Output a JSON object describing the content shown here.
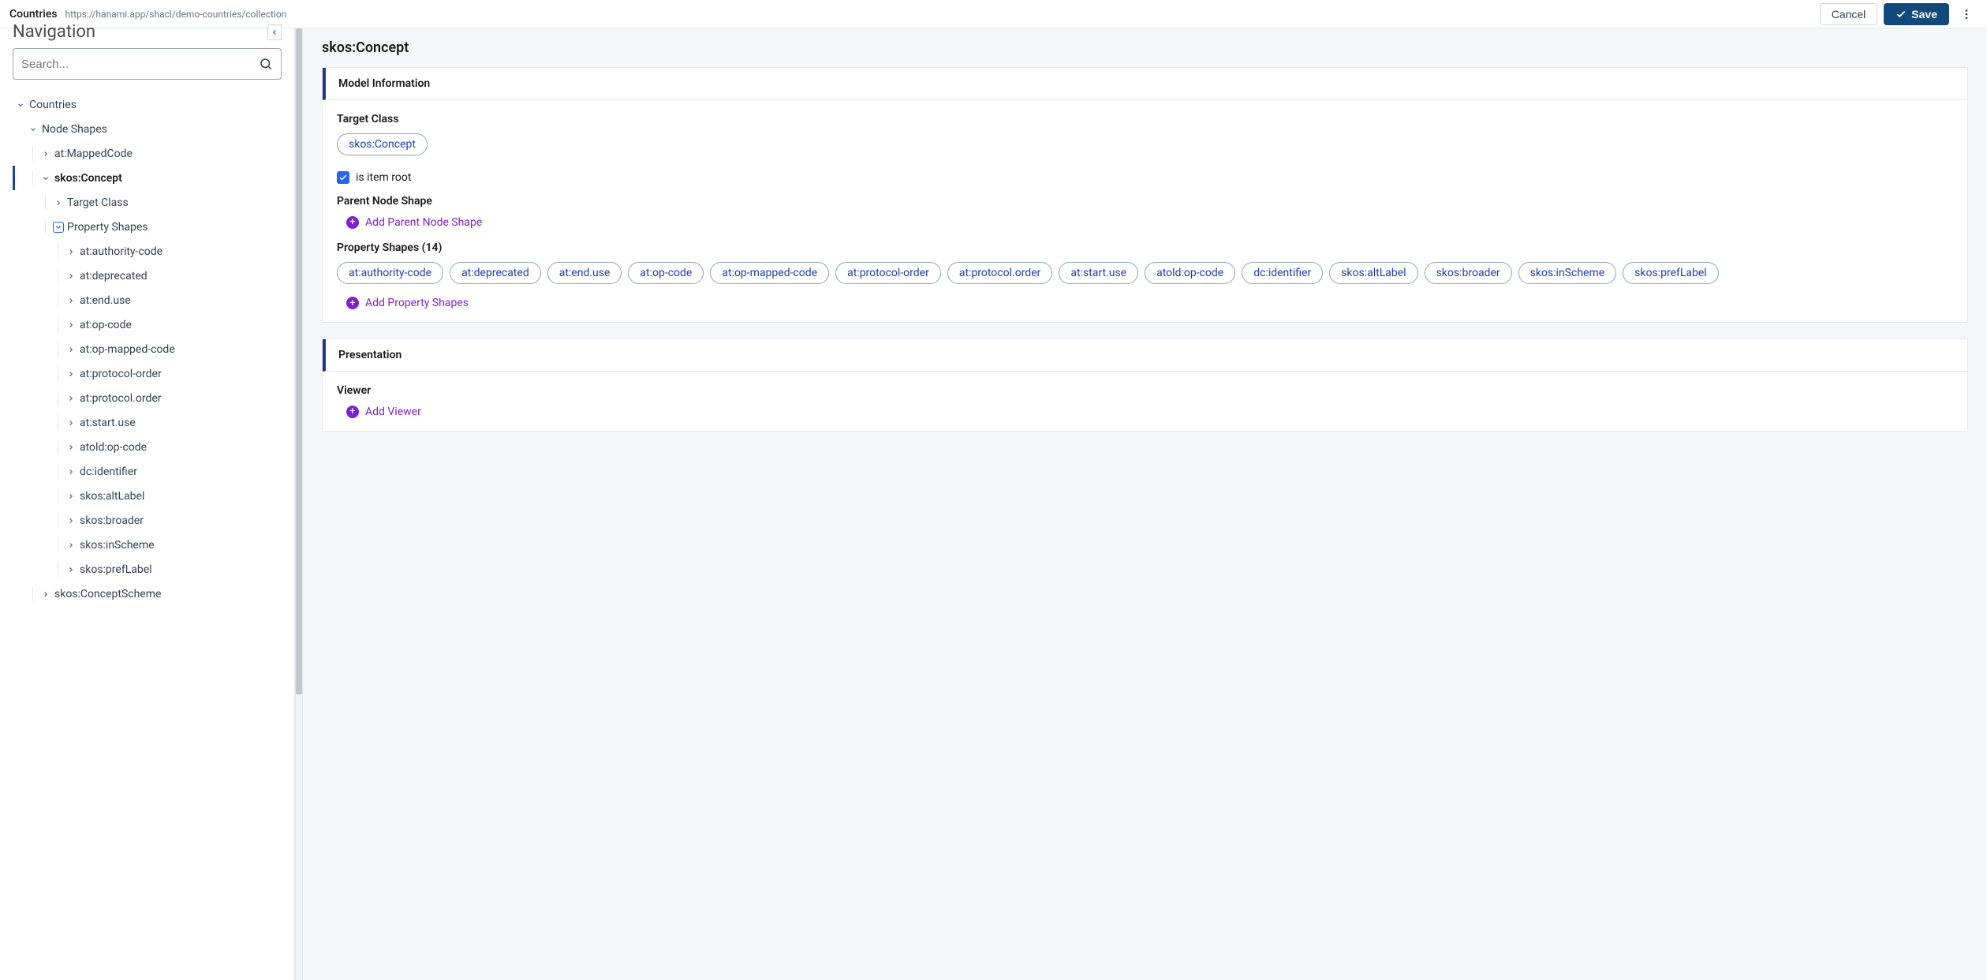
{
  "topbar": {
    "title": "Countries",
    "url": "https://hanami.app/shacl/demo-countries/collection",
    "cancel_label": "Cancel",
    "save_label": "Save"
  },
  "sidebar": {
    "nav_title": "Navigation",
    "search_placeholder": "Search...",
    "tree": [
      {
        "label": "Countries",
        "depth": 0,
        "expanded": true,
        "hasChildren": true
      },
      {
        "label": "Node Shapes",
        "depth": 1,
        "expanded": true,
        "hasChildren": true
      },
      {
        "label": "at:MappedCode",
        "depth": 2,
        "expanded": false,
        "hasChildren": true,
        "guide": true
      },
      {
        "label": "skos:Concept",
        "depth": 2,
        "expanded": true,
        "hasChildren": true,
        "selected": true,
        "guide": true
      },
      {
        "label": "Target Class",
        "depth": 3,
        "expanded": false,
        "hasChildren": true,
        "guide": true
      },
      {
        "label": "Property Shapes",
        "depth": 3,
        "expanded": true,
        "hasChildren": true,
        "selectedBox": true,
        "guide": true
      },
      {
        "label": "at:authority-code",
        "depth": 4,
        "expanded": false,
        "hasChildren": true,
        "guide": true
      },
      {
        "label": "at:deprecated",
        "depth": 4,
        "expanded": false,
        "hasChildren": true,
        "guide": true
      },
      {
        "label": "at:end.use",
        "depth": 4,
        "expanded": false,
        "hasChildren": true,
        "guide": true
      },
      {
        "label": "at:op-code",
        "depth": 4,
        "expanded": false,
        "hasChildren": true,
        "guide": true
      },
      {
        "label": "at:op-mapped-code",
        "depth": 4,
        "expanded": false,
        "hasChildren": true,
        "guide": true
      },
      {
        "label": "at:protocol-order",
        "depth": 4,
        "expanded": false,
        "hasChildren": true,
        "guide": true
      },
      {
        "label": "at:protocol.order",
        "depth": 4,
        "expanded": false,
        "hasChildren": true,
        "guide": true
      },
      {
        "label": "at:start.use",
        "depth": 4,
        "expanded": false,
        "hasChildren": true,
        "guide": true
      },
      {
        "label": "atold:op-code",
        "depth": 4,
        "expanded": false,
        "hasChildren": true,
        "guide": true
      },
      {
        "label": "dc:identifier",
        "depth": 4,
        "expanded": false,
        "hasChildren": true,
        "guide": true
      },
      {
        "label": "skos:altLabel",
        "depth": 4,
        "expanded": false,
        "hasChildren": true,
        "guide": true
      },
      {
        "label": "skos:broader",
        "depth": 4,
        "expanded": false,
        "hasChildren": true,
        "guide": true
      },
      {
        "label": "skos:inScheme",
        "depth": 4,
        "expanded": false,
        "hasChildren": true,
        "guide": true
      },
      {
        "label": "skos:prefLabel",
        "depth": 4,
        "expanded": false,
        "hasChildren": true,
        "guide": true
      },
      {
        "label": "skos:ConceptScheme",
        "depth": 2,
        "expanded": false,
        "hasChildren": true,
        "guide": true
      }
    ]
  },
  "content": {
    "heading": "skos:Concept",
    "model_info": {
      "header": "Model Information",
      "target_class_label": "Target Class",
      "target_class_value": "skos:Concept",
      "is_item_root_label": "is item root",
      "is_item_root_checked": true,
      "parent_node_shape_label": "Parent Node Shape",
      "add_parent_label": "Add Parent Node Shape",
      "property_shapes_label": "Property Shapes (14)",
      "property_shapes": [
        "at:authority-code",
        "at:deprecated",
        "at:end.use",
        "at:op-code",
        "at:op-mapped-code",
        "at:protocol-order",
        "at:protocol.order",
        "at:start.use",
        "atold:op-code",
        "dc:identifier",
        "skos:altLabel",
        "skos:broader",
        "skos:inScheme",
        "skos:prefLabel"
      ],
      "add_property_shapes_label": "Add Property Shapes"
    },
    "presentation": {
      "header": "Presentation",
      "viewer_label": "Viewer",
      "add_viewer_label": "Add Viewer"
    }
  },
  "colors": {
    "accent_blue": "#1e40af",
    "accent_purple": "#7e22ce",
    "save_bg": "#12497a",
    "border": "#e5e7eb"
  }
}
